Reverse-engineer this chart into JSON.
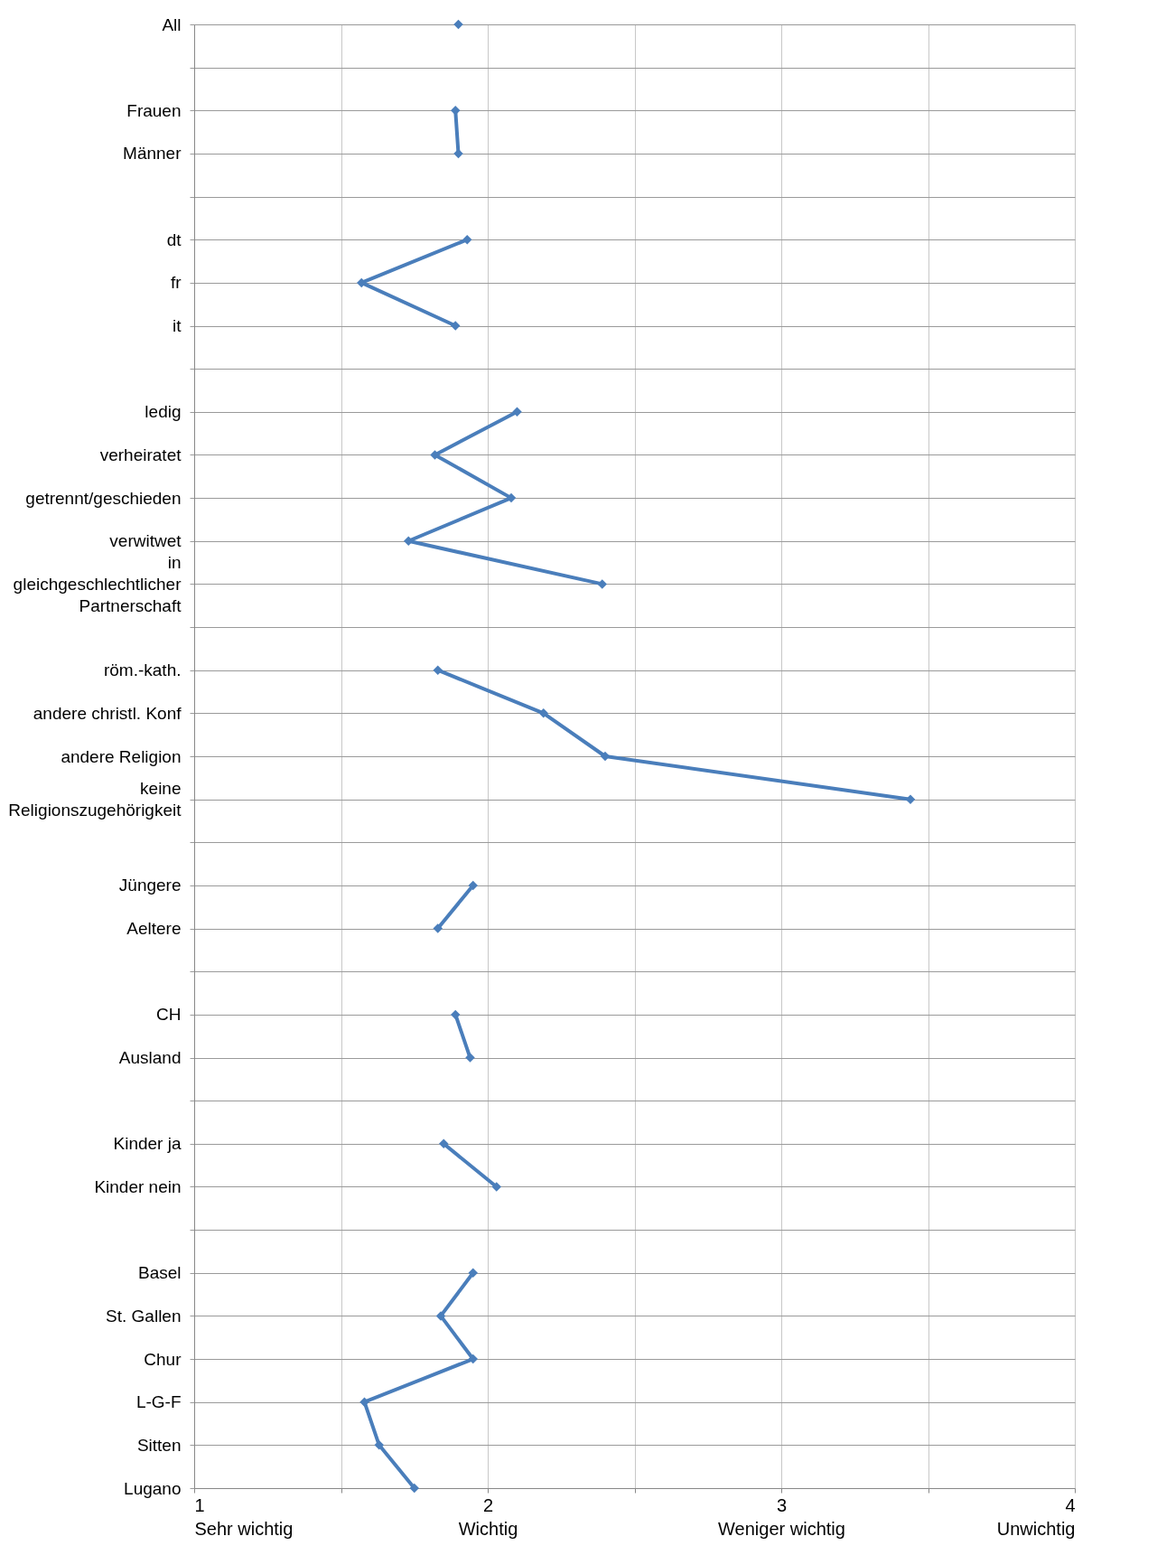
{
  "chart_data": {
    "type": "line",
    "orientation": "horizontal",
    "categories": [
      "All",
      null,
      "Frauen",
      "Männer",
      null,
      "dt",
      "fr",
      "it",
      null,
      "ledig",
      "verheiratet",
      "getrennt/geschieden",
      "verwitwet",
      "in gleichgeschlechtlicher Partnerschaft",
      null,
      "röm.-kath.",
      "andere christl. Konf",
      "andere Religion",
      "keine Religionszugehörigkeit",
      null,
      "Jüngere",
      "Aeltere",
      null,
      "CH",
      "Ausland",
      null,
      "Kinder ja",
      "Kinder nein",
      null,
      "Basel",
      "St. Gallen",
      "Chur",
      "L-G-F",
      "Sitten",
      "Lugano"
    ],
    "values": [
      1.9,
      null,
      1.89,
      1.9,
      null,
      1.93,
      1.57,
      1.89,
      null,
      2.1,
      1.82,
      2.08,
      1.73,
      2.39,
      null,
      1.83,
      2.19,
      2.4,
      3.44,
      null,
      1.95,
      1.83,
      null,
      1.89,
      1.94,
      null,
      1.85,
      2.03,
      null,
      1.95,
      1.84,
      1.95,
      1.58,
      1.63,
      1.75
    ],
    "color": "#4a7ebb",
    "xlim": [
      1,
      4
    ],
    "xticks": [
      {
        "value": 1,
        "label": "1\nSehr wichtig"
      },
      {
        "value": 1.5,
        "label": null
      },
      {
        "value": 2,
        "label": "2\nWichtig"
      },
      {
        "value": 2.5,
        "label": null
      },
      {
        "value": 3,
        "label": "3\nWeniger wichtig"
      },
      {
        "value": 3.5,
        "label": null
      },
      {
        "value": 4,
        "label": "4\nUnwichtig"
      }
    ],
    "grid": true,
    "marker": "diamond"
  }
}
